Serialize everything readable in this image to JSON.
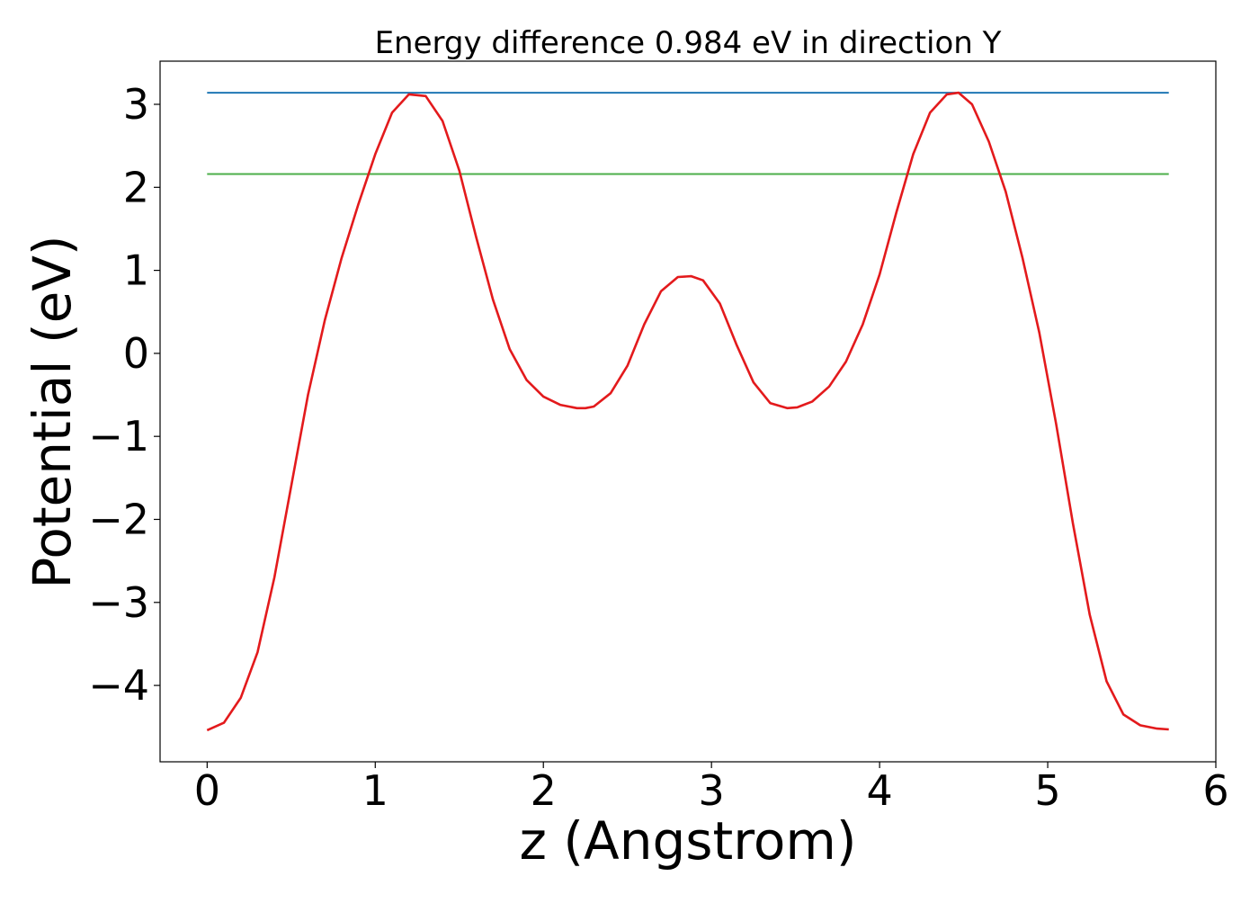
{
  "chart_data": {
    "type": "line",
    "title": "Energy difference 0.984 eV in direction Y",
    "xlabel": "z (Angstrom)",
    "ylabel": "Potential (eV)",
    "xlim": [
      -0.28,
      6.0
    ],
    "ylim": [
      -4.92,
      3.52
    ],
    "xticks": [
      0,
      1,
      2,
      3,
      4,
      5,
      6
    ],
    "xtick_labels": [
      "0",
      "1",
      "2",
      "3",
      "4",
      "5",
      "6"
    ],
    "yticks": [
      3,
      2,
      1,
      0,
      -1,
      -2,
      -3,
      -4
    ],
    "ytick_labels": [
      "3",
      "2",
      "1",
      "0",
      "−1",
      "−2",
      "−3",
      "−4"
    ],
    "grid": false,
    "legend": "none",
    "series": [
      {
        "color": "#e31a1c",
        "x": [
          0.0,
          0.1,
          0.2,
          0.3,
          0.4,
          0.5,
          0.6,
          0.7,
          0.8,
          0.9,
          1.0,
          1.1,
          1.2,
          1.3,
          1.4,
          1.5,
          1.6,
          1.7,
          1.8,
          1.9,
          2.0,
          2.1,
          2.2,
          2.25,
          2.3,
          2.4,
          2.5,
          2.6,
          2.7,
          2.8,
          2.88,
          2.95,
          3.05,
          3.15,
          3.25,
          3.35,
          3.45,
          3.51,
          3.6,
          3.7,
          3.8,
          3.9,
          4.0,
          4.1,
          4.2,
          4.3,
          4.4,
          4.47,
          4.55,
          4.65,
          4.75,
          4.85,
          4.95,
          5.05,
          5.15,
          5.25,
          5.35,
          5.45,
          5.55,
          5.65,
          5.72
        ],
        "values": [
          -4.54,
          -4.45,
          -4.15,
          -3.6,
          -2.7,
          -1.6,
          -0.5,
          0.4,
          1.15,
          1.8,
          2.4,
          2.9,
          3.12,
          3.1,
          2.8,
          2.2,
          1.4,
          0.65,
          0.05,
          -0.32,
          -0.52,
          -0.62,
          -0.66,
          -0.66,
          -0.64,
          -0.48,
          -0.15,
          0.35,
          0.75,
          0.92,
          0.93,
          0.88,
          0.6,
          0.1,
          -0.35,
          -0.6,
          -0.66,
          -0.65,
          -0.58,
          -0.4,
          -0.1,
          0.35,
          0.95,
          1.7,
          2.4,
          2.9,
          3.12,
          3.14,
          3.0,
          2.55,
          1.95,
          1.15,
          0.25,
          -0.85,
          -2.05,
          -3.15,
          -3.95,
          -4.35,
          -4.48,
          -4.52,
          -4.53
        ]
      },
      {
        "color": "#1f77b4",
        "x": [
          0.0,
          5.72
        ],
        "values": [
          3.14,
          3.14
        ]
      },
      {
        "color": "#4daf4a",
        "x": [
          0.0,
          5.72
        ],
        "values": [
          2.16,
          2.16
        ]
      }
    ]
  }
}
